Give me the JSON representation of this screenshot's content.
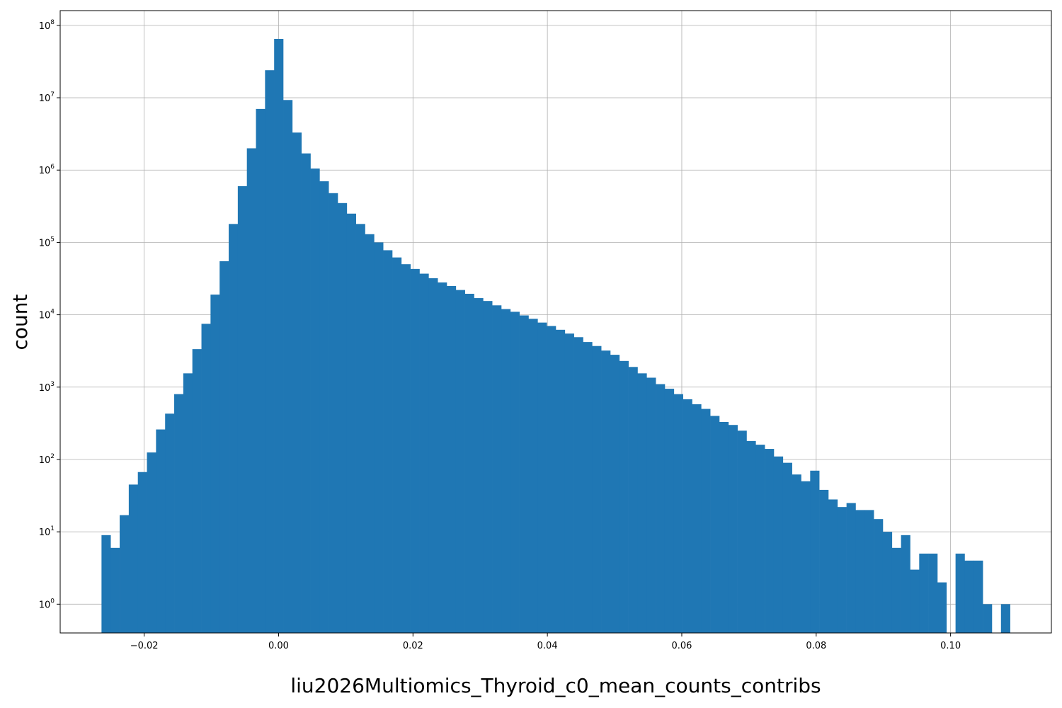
{
  "chart_data": {
    "type": "bar",
    "title": "",
    "xlabel": "liu2026Multiomics_Thyroid_c0_mean_counts_contribs",
    "ylabel": "count",
    "yscale": "log",
    "grid": true,
    "color": "#1f77b4",
    "xlim": [
      -0.0325,
      0.115
    ],
    "ylim": [
      0.4,
      160000000
    ],
    "x_ticks": [
      -0.02,
      0.0,
      0.02,
      0.04,
      0.06,
      0.08,
      0.1
    ],
    "x_tick_labels": [
      "−0.02",
      "0.00",
      "0.02",
      "0.04",
      "0.06",
      "0.08",
      "0.10"
    ],
    "y_ticks": [
      1,
      10,
      100,
      1000,
      10000,
      100000,
      1000000,
      10000000,
      100000000
    ],
    "y_tick_exponents": [
      "0",
      "1",
      "2",
      "3",
      "4",
      "5",
      "6",
      "7",
      "8"
    ],
    "bin_start": -0.02635,
    "bin_width": 0.001352,
    "counts": [
      9,
      6,
      17,
      45,
      67,
      125,
      260,
      430,
      800,
      1550,
      3350,
      7500,
      19000,
      55000,
      180000,
      600000,
      2000000,
      7000000,
      24000000,
      65000000,
      9300000,
      3300000,
      1700000,
      1050000,
      700000,
      480000,
      350000,
      250000,
      180000,
      130000,
      100000,
      78000,
      62000,
      50000,
      43000,
      37000,
      32000,
      28000,
      25000,
      22000,
      19500,
      17000,
      15500,
      13500,
      12000,
      11000,
      9800,
      8800,
      7800,
      7000,
      6200,
      5500,
      4900,
      4200,
      3700,
      3200,
      2800,
      2300,
      1900,
      1550,
      1350,
      1100,
      950,
      800,
      680,
      580,
      500,
      400,
      330,
      300,
      250,
      180,
      160,
      140,
      110,
      90,
      62,
      50,
      70,
      38,
      28,
      22,
      25,
      20,
      20,
      15,
      10,
      6,
      9,
      3,
      5,
      5,
      2,
      0,
      5,
      4,
      4,
      1,
      0,
      1
    ]
  }
}
